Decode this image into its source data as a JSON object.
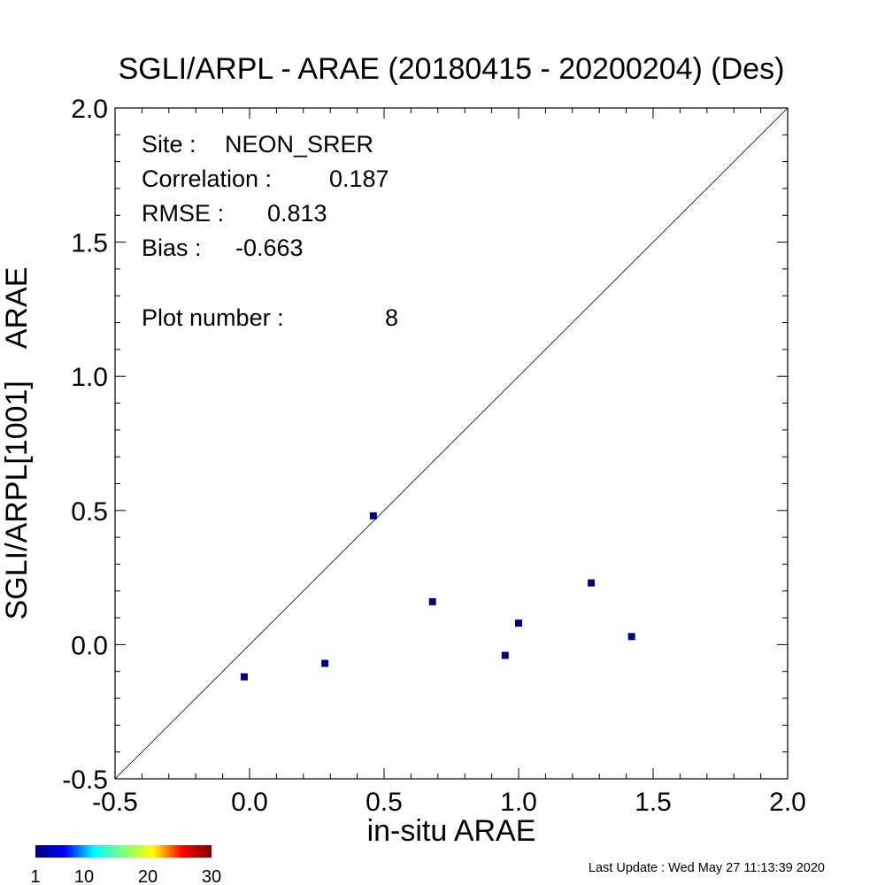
{
  "chart_data": {
    "type": "scatter",
    "title": "SGLI/ARPL - ARAE (20180415 - 20200204) (Des)",
    "xlabel": "in-situ ARAE",
    "ylabel": "SGLI/ARPL[1001]    ARAE",
    "xlim": [
      -0.5,
      2.0
    ],
    "ylim": [
      -0.5,
      2.0
    ],
    "x_ticks": [
      "-0.5",
      "0.0",
      "0.5",
      "1.0",
      "1.5",
      "2.0"
    ],
    "y_ticks": [
      "-0.5",
      "0.0",
      "0.5",
      "1.0",
      "1.5",
      "2.0"
    ],
    "one_to_one_line": true,
    "grid": false,
    "point_color": "#00007f",
    "points": [
      {
        "x": -0.02,
        "y": -0.12
      },
      {
        "x": 0.28,
        "y": -0.07
      },
      {
        "x": 0.46,
        "y": 0.48
      },
      {
        "x": 0.68,
        "y": 0.16
      },
      {
        "x": 0.95,
        "y": -0.04
      },
      {
        "x": 1.0,
        "y": 0.08
      },
      {
        "x": 1.27,
        "y": 0.23
      },
      {
        "x": 1.42,
        "y": 0.03
      }
    ],
    "stats": [
      {
        "label": "Site :",
        "value": "NEON_SRER"
      },
      {
        "label": "Correlation :",
        "value": "0.187"
      },
      {
        "label": "RMSE :",
        "value": "0.813"
      },
      {
        "label": "Bias :",
        "value": "-0.663"
      },
      {
        "label": "Plot number :",
        "value": "8"
      }
    ],
    "colorbar": {
      "ticks": [
        "1",
        "10",
        "20",
        "30"
      ],
      "colors": [
        "#00007f",
        "#0000ff",
        "#00ffff",
        "#7fff7f",
        "#ffff00",
        "#ff0000",
        "#7f0000"
      ]
    }
  },
  "footer": {
    "last_update": "Last Update : Wed May 27 11:13:39 2020"
  }
}
